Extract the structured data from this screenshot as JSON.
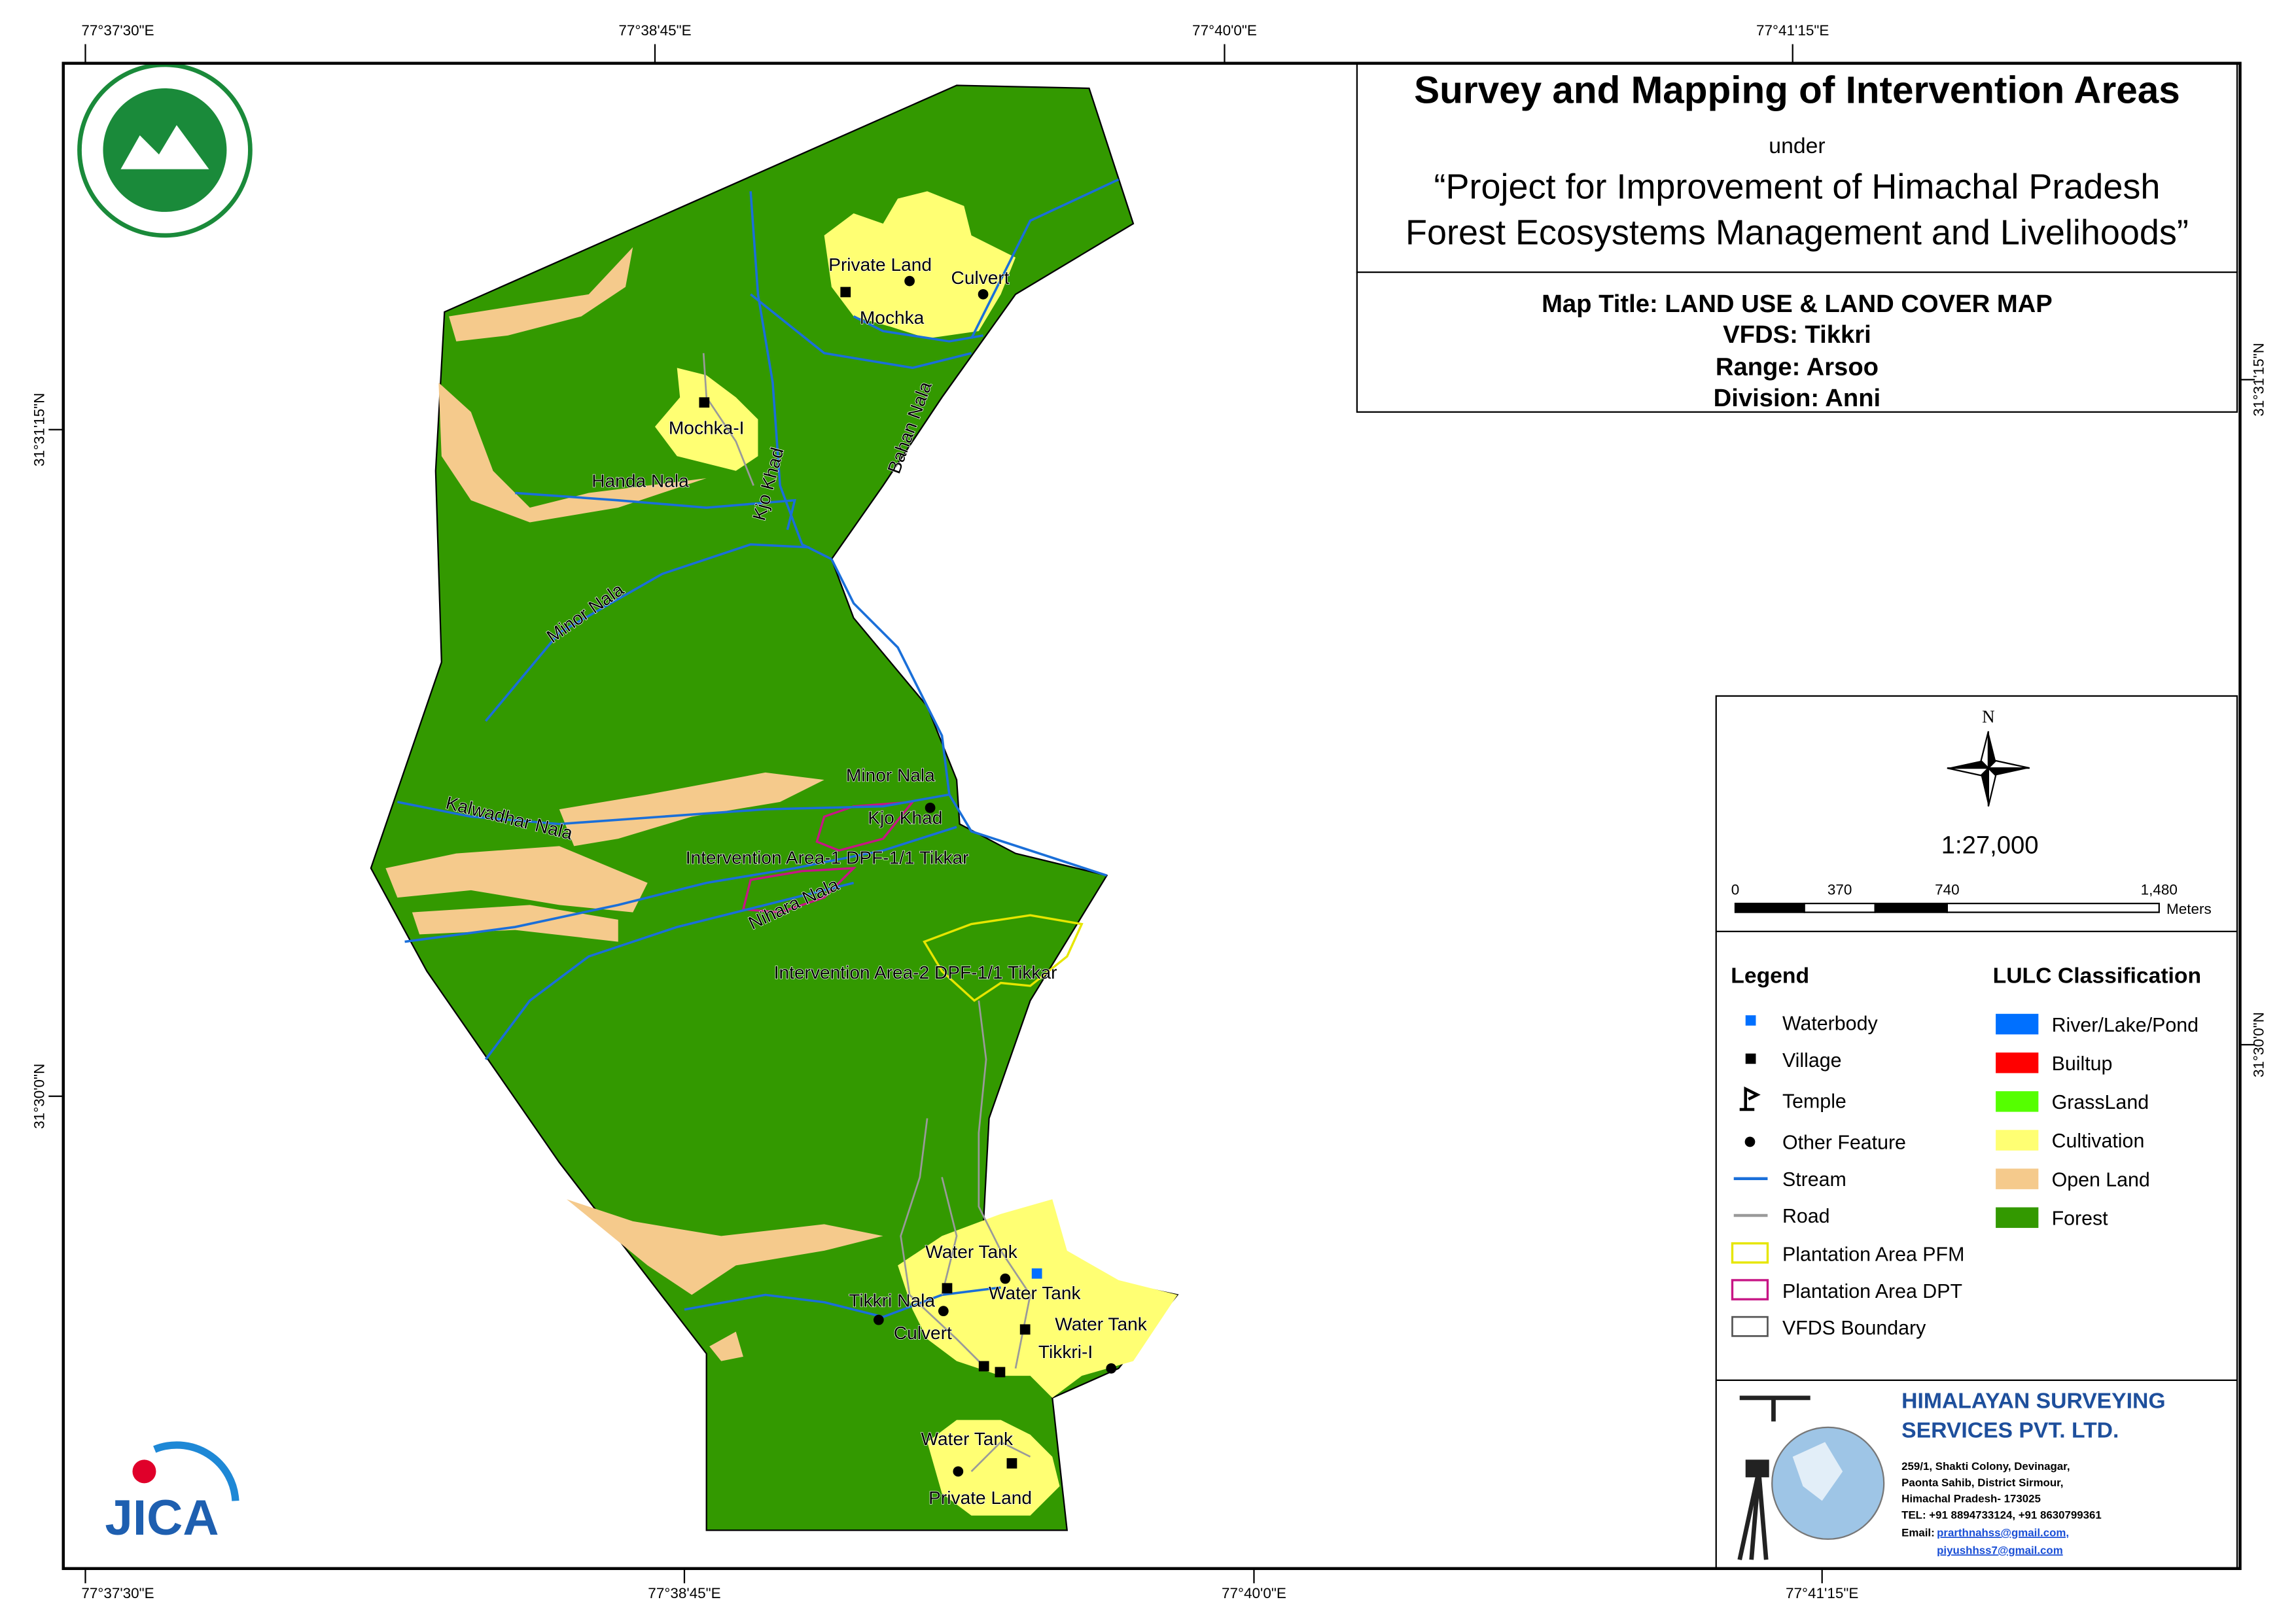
{
  "graticule": {
    "top": [
      "77°37'30\"E",
      "77°38'45\"E",
      "77°40'0\"E",
      "77°41'15\"E"
    ],
    "bottom": [
      "77°37'30\"E",
      "77°38'45\"E",
      "77°40'0\"E",
      "77°41'15\"E"
    ],
    "left": [
      "31°31'15\"N",
      "31°30'0\"N"
    ],
    "right": [
      "31°31'15\"N",
      "31°30'0\"N"
    ]
  },
  "title": {
    "main": "Survey and Mapping of Intervention Areas",
    "under": "under",
    "project_line1": "“Project for Improvement of Himachal Pradesh",
    "project_line2": "Forest Ecosystems Management and Livelihoods”"
  },
  "map_info": [
    "Map Title: LAND USE & LAND COVER MAP",
    "VFDS: Tikkri",
    "Range: Arsoo",
    "Division: Anni"
  ],
  "map_labels": [
    "Private Land",
    "Culvert",
    "Mochka",
    "Mochka-I",
    "Handa Nala",
    "Kjo Khad",
    "Bahan Nala",
    "Minor Nala",
    "Minor Nala",
    "Kjo Khad",
    "Kalwadhar Nala",
    "Intervention Area-1 DPF-1/1 Tikkar",
    "Nihara Nala",
    "Intervention Area-2 DPF-1/1 Tikkar",
    "Water Tank",
    "Tikkri Nala",
    "Water Tank",
    "Water Tank",
    "Culvert",
    "Tikkri-I",
    "Water Tank",
    "Private Land"
  ],
  "north": "N",
  "scale": {
    "ratio": "1:27,000",
    "ticks": [
      "0",
      "370",
      "740",
      "1,480"
    ],
    "unit": "Meters"
  },
  "legend": {
    "title": "Legend",
    "items": [
      "Waterbody",
      "Village",
      "Temple",
      "Other Feature",
      "Stream",
      "Road",
      "Plantation Area PFM",
      "Plantation Area DPT",
      "VFDS Boundary"
    ]
  },
  "lulc": {
    "title": "LULC Classification",
    "items": [
      {
        "label": "River/Lake/Pond",
        "color": "#0070ff"
      },
      {
        "label": "Builtup",
        "color": "#ff0000"
      },
      {
        "label": "GrassLand",
        "color": "#55ff00"
      },
      {
        "label": "Cultivation",
        "color": "#ffff73"
      },
      {
        "label": "Open Land",
        "color": "#f5ca8c"
      },
      {
        "label": "Forest",
        "color": "#339900"
      }
    ]
  },
  "company": {
    "name_line1": "HIMALAYAN SURVEYING",
    "name_line2": "SERVICES PVT. LTD.",
    "address": [
      "259/1, Shakti Colony, Devinagar,",
      "Paonta Sahib, District Sirmour,",
      "Himachal Pradesh- 173025",
      "TEL: +91 8894733124, +91 8630799361"
    ],
    "email_label": "Email:",
    "emails": [
      "prarthnahss@gmail.com,",
      "piyushhss7@gmail.com"
    ]
  },
  "jica_logo": "JICA"
}
